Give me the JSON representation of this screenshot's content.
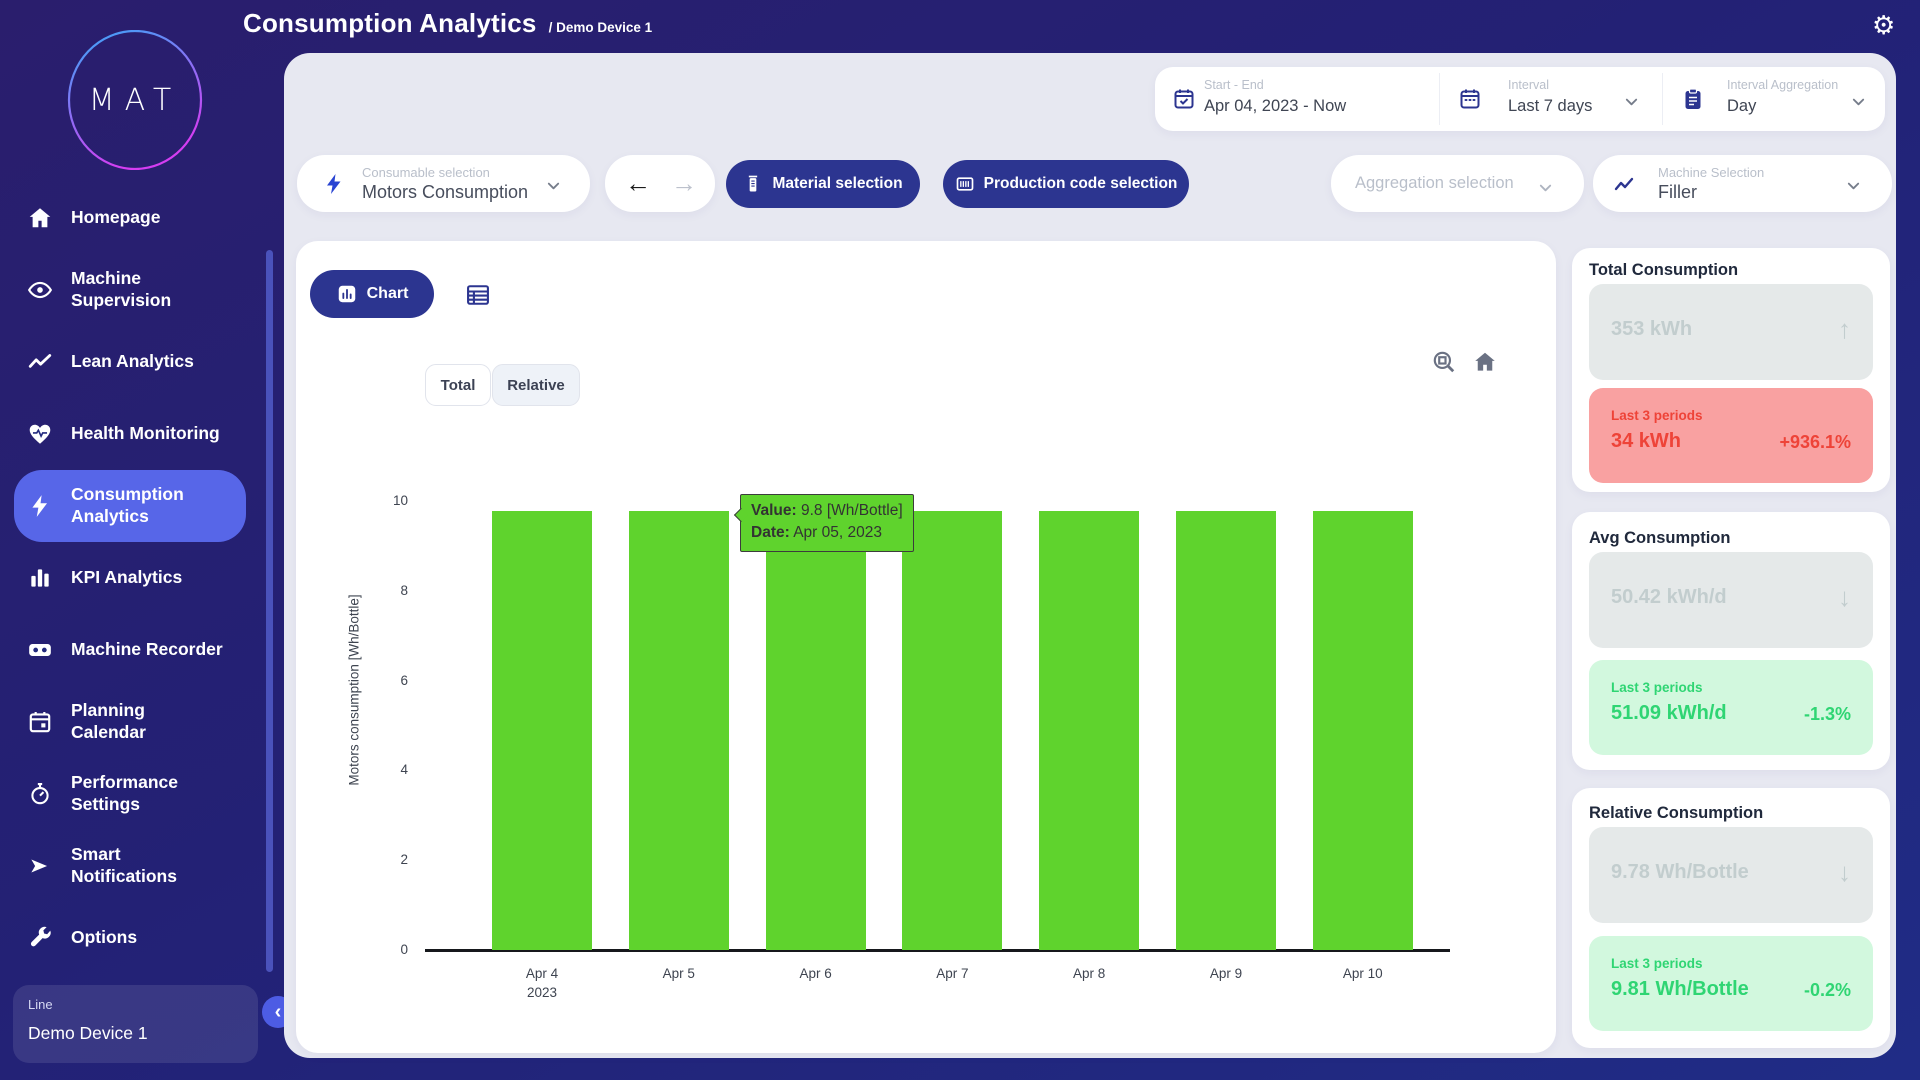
{
  "header": {
    "title": "Consumption Analytics",
    "breadcrumb": "/ Demo Device 1",
    "gear_icon": "⚙"
  },
  "sidebar": {
    "logo_text": "MAT",
    "items": [
      {
        "label": "Homepage",
        "icon": "home"
      },
      {
        "label": "Machine\nSupervision",
        "icon": "eye"
      },
      {
        "label": "Lean Analytics",
        "icon": "trend"
      },
      {
        "label": "Health Monitoring",
        "icon": "heart"
      },
      {
        "label": "Consumption\nAnalytics",
        "icon": "bolt",
        "active": true
      },
      {
        "label": "KPI Analytics",
        "icon": "bars"
      },
      {
        "label": "Machine Recorder",
        "icon": "recorder"
      },
      {
        "label": "Planning\nCalendar",
        "icon": "calendar"
      },
      {
        "label": "Performance\nSettings",
        "icon": "stopwatch"
      },
      {
        "label": "Smart\nNotifications",
        "icon": "send"
      },
      {
        "label": "Options",
        "icon": "wrench"
      }
    ],
    "device_card": {
      "label": "Line",
      "value": "Demo Device 1"
    },
    "collapse_icon": "‹"
  },
  "controls": {
    "start_end": {
      "label": "Start - End",
      "value": "Apr 04, 2023 - Now"
    },
    "interval": {
      "label": "Interval",
      "value": "Last 7 days"
    },
    "interval_aggregation": {
      "label": "Interval Aggregation",
      "value": "Day"
    }
  },
  "filters": {
    "consumable": {
      "label": "Consumable selection",
      "value": "Motors Consumption"
    },
    "back_arrow": "←",
    "forward_arrow": "→",
    "material_button": "Material selection",
    "production_button": "Production code selection",
    "aggregation_placeholder": "Aggregation selection",
    "machine": {
      "label": "Machine Selection",
      "value": "Filler"
    }
  },
  "chart_panel": {
    "chart_button": "Chart",
    "tabs": [
      {
        "label": "Total",
        "selected": false
      },
      {
        "label": "Relative",
        "selected": true
      }
    ],
    "tooltip": {
      "value_label": "Value:",
      "value": "9.8 [Wh/Bottle]",
      "date_label": "Date:",
      "date": "Apr 05, 2023"
    }
  },
  "chart_data": {
    "type": "bar",
    "categories": [
      "Apr 4\n2023",
      "Apr 5",
      "Apr 6",
      "Apr 7",
      "Apr 8",
      "Apr 9",
      "Apr 10"
    ],
    "values": [
      9.8,
      9.8,
      9.8,
      9.8,
      9.8,
      9.8,
      9.8
    ],
    "title": "",
    "xlabel": "",
    "ylabel": "Motors consumption [Wh/Bottle]",
    "ylim": [
      0,
      10
    ],
    "yticks": [
      0,
      2,
      4,
      6,
      8,
      10
    ],
    "grid": false,
    "bar_color": "#5fd32d"
  },
  "stats": [
    {
      "title": "Total Consumption",
      "current": "353 kWh",
      "trend_icon": "↑",
      "period_label": "Last 3 periods",
      "period_value": "34 kWh",
      "period_delta": "+936.1%",
      "sentiment": "bad"
    },
    {
      "title": "Avg Consumption",
      "current": "50.42 kWh/d",
      "trend_icon": "↓",
      "period_label": "Last 3 periods",
      "period_value": "51.09 kWh/d",
      "period_delta": "-1.3%",
      "sentiment": "good"
    },
    {
      "title": "Relative Consumption",
      "current": "9.78 Wh/Bottle",
      "trend_icon": "↓",
      "period_label": "Last 3 periods",
      "period_value": "9.81 Wh/Bottle",
      "period_delta": "-0.2%",
      "sentiment": "good"
    }
  ],
  "colors": {
    "page_bg": "#232175",
    "panel_bg": "#e7e8f1",
    "accent_indigo": "#2c3590",
    "active_item": "#5766e8",
    "bar_green": "#5fd32d",
    "bad_bg": "#f9a1a1",
    "bad_text": "#ee4338",
    "good_bg": "#d2f8de",
    "good_text": "#2fd573",
    "muted_bg": "#e5e9e9",
    "muted_text": "#c2cdce"
  }
}
